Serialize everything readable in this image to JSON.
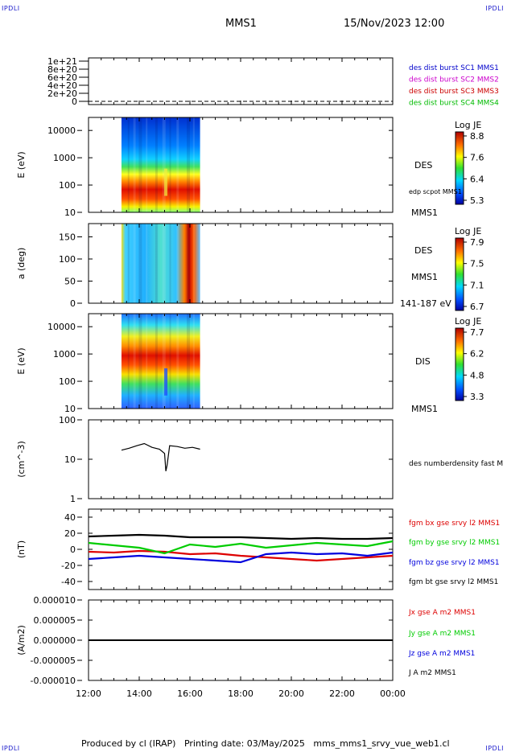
{
  "corner_tags": {
    "top_left": "IPDLI",
    "top_right": "IPDLI",
    "bottom_left": "IPDLI",
    "bottom_right": "IPDLI"
  },
  "header": {
    "spacecraft": "MMS1",
    "datetime": "15/Nov/2023 12:00"
  },
  "footer": {
    "text": "Produced by cl (IRAP)   Printing date: 03/May/2025   mms_mms1_srvy_vue_web1.cl"
  },
  "time_axis": {
    "ticks": [
      "12:00",
      "14:00",
      "16:00",
      "18:00",
      "20:00",
      "22:00",
      "00:00"
    ],
    "start_hours": 12,
    "end_hours": 24
  },
  "chart_data": [
    {
      "type": "line",
      "panel": "burst-flags",
      "yticks": [
        "1e+21",
        "8e+20",
        "6e+20",
        "4e+20",
        "2e+20",
        "0"
      ],
      "ylim": [
        0,
        1e+21
      ],
      "legend": [
        {
          "label": "des dist burst SC1 MMS1",
          "color": "#0000cc"
        },
        {
          "label": "des dist burst SC2 MMS2",
          "color": "#cc00cc"
        },
        {
          "label": "des dist burst SC3 MMS3",
          "color": "#cc0000"
        },
        {
          "label": "des dist burst SC4 MMS4",
          "color": "#00bb00"
        }
      ]
    },
    {
      "type": "heatmap",
      "panel": "des-energy",
      "ylabel": "E (eV)",
      "scale": "log",
      "yticks": [
        "10000",
        "1000",
        "100",
        "10"
      ],
      "ylim": [
        10,
        30000
      ],
      "right_labels": [
        "DES",
        "edp scpot MMS1",
        "MMS1"
      ],
      "colorbar": {
        "title": "Log JE",
        "ticks": [
          "8.8",
          "7.6",
          "6.4",
          "5.3"
        ]
      },
      "data_span_hours": [
        13.3,
        16.4
      ],
      "peak_energy_eV": 70
    },
    {
      "type": "heatmap",
      "panel": "des-pitch",
      "ylabel": "a (deg)",
      "yticks": [
        "150",
        "100",
        "50",
        "0"
      ],
      "ylim": [
        0,
        180
      ],
      "right_labels": [
        "DES",
        "MMS1",
        "141-187 eV"
      ],
      "colorbar": {
        "title": "Log JE",
        "ticks": [
          "7.9",
          "7.5",
          "7.1",
          "6.7"
        ]
      },
      "data_span_hours": [
        13.3,
        16.4
      ]
    },
    {
      "type": "heatmap",
      "panel": "dis-energy",
      "ylabel": "E (eV)",
      "scale": "log",
      "yticks": [
        "10000",
        "1000",
        "100",
        "10"
      ],
      "ylim": [
        10,
        30000
      ],
      "right_labels": [
        "DIS",
        "MMS1"
      ],
      "colorbar": {
        "title": "Log JE",
        "ticks": [
          "7.7",
          "6.2",
          "4.8",
          "3.3"
        ]
      },
      "data_span_hours": [
        13.3,
        16.4
      ],
      "peak_energy_eV": 800
    },
    {
      "type": "line",
      "panel": "density",
      "ylabel": "(cm^-3)",
      "scale": "log",
      "yticks": [
        "100",
        "10",
        "1"
      ],
      "ylim": [
        1,
        100
      ],
      "series": [
        {
          "name": "des numberdensity fast M",
          "color": "#000000",
          "x": [
            13.3,
            13.6,
            13.9,
            14.2,
            14.5,
            14.8,
            15.0,
            15.05,
            15.1,
            15.2,
            15.5,
            15.8,
            16.1,
            16.4
          ],
          "y": [
            17,
            19,
            22,
            25,
            20,
            18,
            14,
            5,
            7,
            22,
            21,
            19,
            20,
            18
          ]
        }
      ]
    },
    {
      "type": "line",
      "panel": "magnetic-field",
      "ylabel": "(nT)",
      "yticks": [
        "40",
        "20",
        "0",
        "-20",
        "-40"
      ],
      "ylim": [
        -50,
        50
      ],
      "series": [
        {
          "name": "fgm bx gse srvy l2 MMS1",
          "color": "#dd0000",
          "x": [
            12,
            13,
            14,
            15,
            16,
            17,
            18,
            19,
            20,
            21,
            22,
            23,
            24
          ],
          "y": [
            -3,
            -4,
            -2,
            -3,
            -6,
            -5,
            -8,
            -10,
            -12,
            -14,
            -12,
            -10,
            -8
          ]
        },
        {
          "name": "fgm by gse srvy l2 MMS1",
          "color": "#00cc00",
          "x": [
            12,
            13,
            14,
            15,
            16,
            17,
            18,
            19,
            20,
            21,
            22,
            23,
            24
          ],
          "y": [
            8,
            5,
            2,
            -5,
            6,
            3,
            7,
            2,
            5,
            8,
            6,
            4,
            10
          ]
        },
        {
          "name": "fgm bz gse srvy l2 MMS1",
          "color": "#0000dd",
          "x": [
            12,
            13,
            14,
            15,
            16,
            17,
            18,
            19,
            20,
            21,
            22,
            23,
            24
          ],
          "y": [
            -12,
            -10,
            -8,
            -10,
            -12,
            -14,
            -16,
            -6,
            -4,
            -6,
            -5,
            -8,
            -4
          ]
        },
        {
          "name": "fgm bt gse srvy l2 MMS1",
          "color": "#000000",
          "x": [
            12,
            13,
            14,
            15,
            16,
            17,
            18,
            19,
            20,
            21,
            22,
            23,
            24
          ],
          "y": [
            16,
            17,
            18,
            17,
            15,
            15,
            15,
            14,
            13,
            14,
            13,
            13,
            14
          ]
        }
      ]
    },
    {
      "type": "line",
      "panel": "current-density",
      "ylabel": "(A/m2)",
      "yticks": [
        "0.000010",
        "0.000005",
        "0.000000",
        "-0.000005",
        "-0.000010"
      ],
      "ylim": [
        -1e-05,
        1e-05
      ],
      "series": [
        {
          "name": "Jx gse A m2 MMS1",
          "color": "#dd0000"
        },
        {
          "name": "Jy gse A m2 MMS1",
          "color": "#00cc00"
        },
        {
          "name": "Jz gse A m2 MMS1",
          "color": "#0000dd"
        },
        {
          "name": "J A m2 MMS1",
          "color": "#000000"
        }
      ]
    }
  ]
}
